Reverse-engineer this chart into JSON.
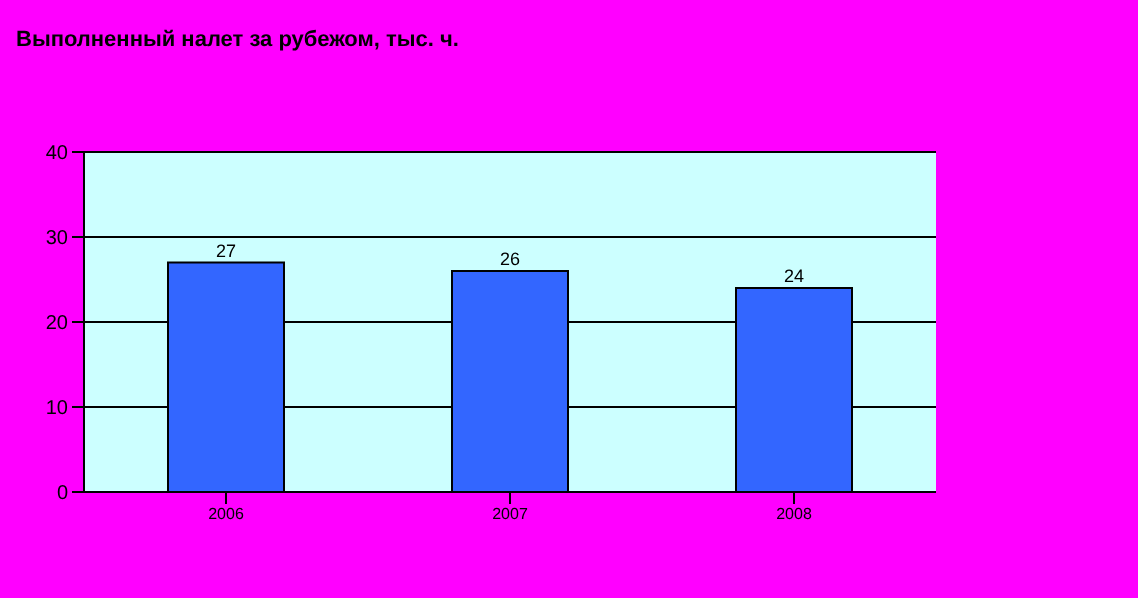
{
  "chart_data": {
    "type": "bar",
    "title": "Выполненный налет за рубежом, тыс. ч.",
    "categories": [
      "2006",
      "2007",
      "2008"
    ],
    "values": [
      27,
      26,
      24
    ],
    "color": "#3366ff",
    "ylim": [
      0,
      40
    ],
    "yticks": [
      0,
      10,
      20,
      30,
      40
    ],
    "grid": "y",
    "data_labels": true
  }
}
